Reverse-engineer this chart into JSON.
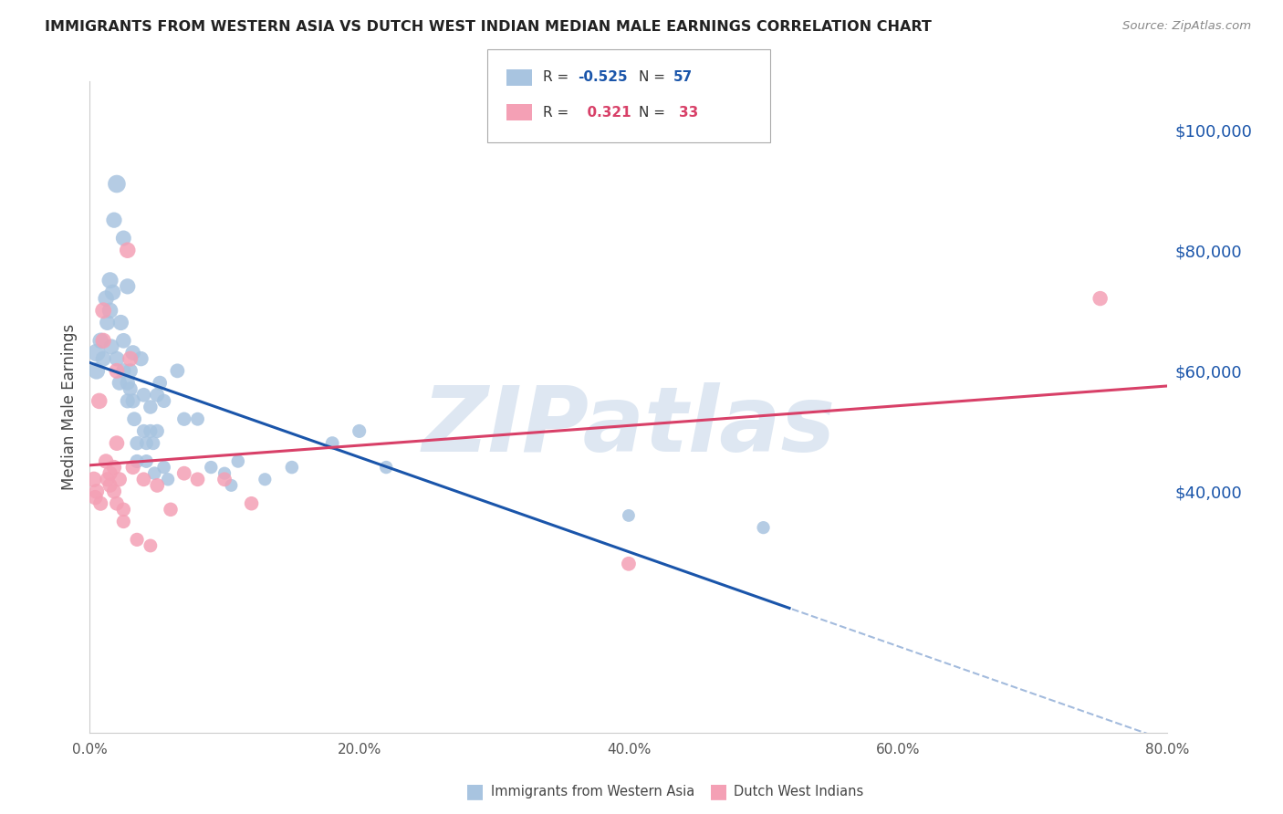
{
  "title": "IMMIGRANTS FROM WESTERN ASIA VS DUTCH WEST INDIAN MEDIAN MALE EARNINGS CORRELATION CHART",
  "source": "Source: ZipAtlas.com",
  "ylabel": "Median Male Earnings",
  "ytick_labels": [
    "$40,000",
    "$60,000",
    "$80,000",
    "$100,000"
  ],
  "ytick_values": [
    40000,
    60000,
    80000,
    100000
  ],
  "ylim": [
    0,
    108000
  ],
  "xlim": [
    0.0,
    80.0
  ],
  "xtick_vals": [
    0.0,
    20.0,
    40.0,
    60.0,
    80.0
  ],
  "xtick_labels": [
    "0.0%",
    "20.0%",
    "40.0%",
    "60.0%",
    "80.0%"
  ],
  "blue_R": "-0.525",
  "blue_N": "57",
  "pink_R": "0.321",
  "pink_N": "33",
  "blue_color": "#a8c4e0",
  "pink_color": "#f4a0b5",
  "blue_line_color": "#1a55aa",
  "pink_line_color": "#d84068",
  "blue_scatter": [
    [
      0.5,
      63000
    ],
    [
      0.5,
      60000
    ],
    [
      0.8,
      65000
    ],
    [
      1.0,
      62000
    ],
    [
      1.2,
      72000
    ],
    [
      1.3,
      68000
    ],
    [
      1.5,
      75000
    ],
    [
      1.5,
      70000
    ],
    [
      1.6,
      64000
    ],
    [
      1.7,
      73000
    ],
    [
      1.8,
      85000
    ],
    [
      2.0,
      91000
    ],
    [
      2.0,
      62000
    ],
    [
      2.2,
      58000
    ],
    [
      2.3,
      68000
    ],
    [
      2.5,
      82000
    ],
    [
      2.5,
      65000
    ],
    [
      2.5,
      60000
    ],
    [
      2.8,
      74000
    ],
    [
      2.8,
      58000
    ],
    [
      2.8,
      55000
    ],
    [
      3.0,
      60000
    ],
    [
      3.0,
      57000
    ],
    [
      3.2,
      63000
    ],
    [
      3.2,
      55000
    ],
    [
      3.3,
      52000
    ],
    [
      3.5,
      48000
    ],
    [
      3.5,
      45000
    ],
    [
      3.8,
      62000
    ],
    [
      4.0,
      56000
    ],
    [
      4.0,
      50000
    ],
    [
      4.2,
      48000
    ],
    [
      4.2,
      45000
    ],
    [
      4.5,
      54000
    ],
    [
      4.5,
      50000
    ],
    [
      4.7,
      48000
    ],
    [
      4.8,
      43000
    ],
    [
      5.0,
      56000
    ],
    [
      5.0,
      50000
    ],
    [
      5.2,
      58000
    ],
    [
      5.5,
      55000
    ],
    [
      5.5,
      44000
    ],
    [
      5.8,
      42000
    ],
    [
      6.5,
      60000
    ],
    [
      7.0,
      52000
    ],
    [
      8.0,
      52000
    ],
    [
      9.0,
      44000
    ],
    [
      10.0,
      43000
    ],
    [
      10.5,
      41000
    ],
    [
      11.0,
      45000
    ],
    [
      13.0,
      42000
    ],
    [
      15.0,
      44000
    ],
    [
      18.0,
      48000
    ],
    [
      20.0,
      50000
    ],
    [
      22.0,
      44000
    ],
    [
      40.0,
      36000
    ],
    [
      50.0,
      34000
    ]
  ],
  "pink_scatter": [
    [
      0.3,
      42000
    ],
    [
      0.4,
      39000
    ],
    [
      0.5,
      40000
    ],
    [
      0.7,
      55000
    ],
    [
      0.8,
      38000
    ],
    [
      1.0,
      70000
    ],
    [
      1.0,
      65000
    ],
    [
      1.2,
      45000
    ],
    [
      1.3,
      42000
    ],
    [
      1.5,
      43000
    ],
    [
      1.5,
      41000
    ],
    [
      1.8,
      44000
    ],
    [
      1.8,
      40000
    ],
    [
      2.0,
      48000
    ],
    [
      2.0,
      60000
    ],
    [
      2.0,
      38000
    ],
    [
      2.2,
      42000
    ],
    [
      2.5,
      37000
    ],
    [
      2.5,
      35000
    ],
    [
      2.8,
      80000
    ],
    [
      3.0,
      62000
    ],
    [
      3.2,
      44000
    ],
    [
      3.5,
      32000
    ],
    [
      4.0,
      42000
    ],
    [
      4.5,
      31000
    ],
    [
      5.0,
      41000
    ],
    [
      6.0,
      37000
    ],
    [
      7.0,
      43000
    ],
    [
      8.0,
      42000
    ],
    [
      10.0,
      42000
    ],
    [
      12.0,
      38000
    ],
    [
      40.0,
      28000
    ],
    [
      75.0,
      72000
    ]
  ],
  "blue_scatter_sizes": [
    200,
    180,
    160,
    150,
    160,
    150,
    170,
    160,
    150,
    160,
    155,
    200,
    145,
    140,
    155,
    150,
    145,
    140,
    155,
    140,
    135,
    140,
    135,
    145,
    135,
    130,
    125,
    120,
    140,
    130,
    120,
    118,
    115,
    125,
    120,
    118,
    112,
    130,
    122,
    128,
    122,
    112,
    108,
    130,
    122,
    115,
    108,
    105,
    102,
    110,
    105,
    110,
    115,
    118,
    108,
    100,
    105
  ],
  "pink_scatter_sizes": [
    155,
    140,
    145,
    160,
    135,
    165,
    155,
    140,
    135,
    138,
    133,
    140,
    135,
    145,
    150,
    130,
    135,
    125,
    120,
    160,
    150,
    135,
    120,
    130,
    115,
    130,
    125,
    130,
    128,
    130,
    125,
    130,
    140
  ],
  "watermark_text": "ZIPatlas",
  "watermark_color": "#c8d8ea",
  "watermark_alpha": 0.6,
  "background_color": "#ffffff",
  "grid_color": "#dddddd",
  "legend_blue_label1": "R = ",
  "legend_blue_R": "-0.525",
  "legend_blue_label2": "N = ",
  "legend_blue_N": "57",
  "legend_pink_label1": "R = ",
  "legend_pink_R": "0.321",
  "legend_pink_label2": "N = ",
  "legend_pink_N": "33",
  "bottom_legend_blue": "Immigrants from Western Asia",
  "bottom_legend_pink": "Dutch West Indians"
}
